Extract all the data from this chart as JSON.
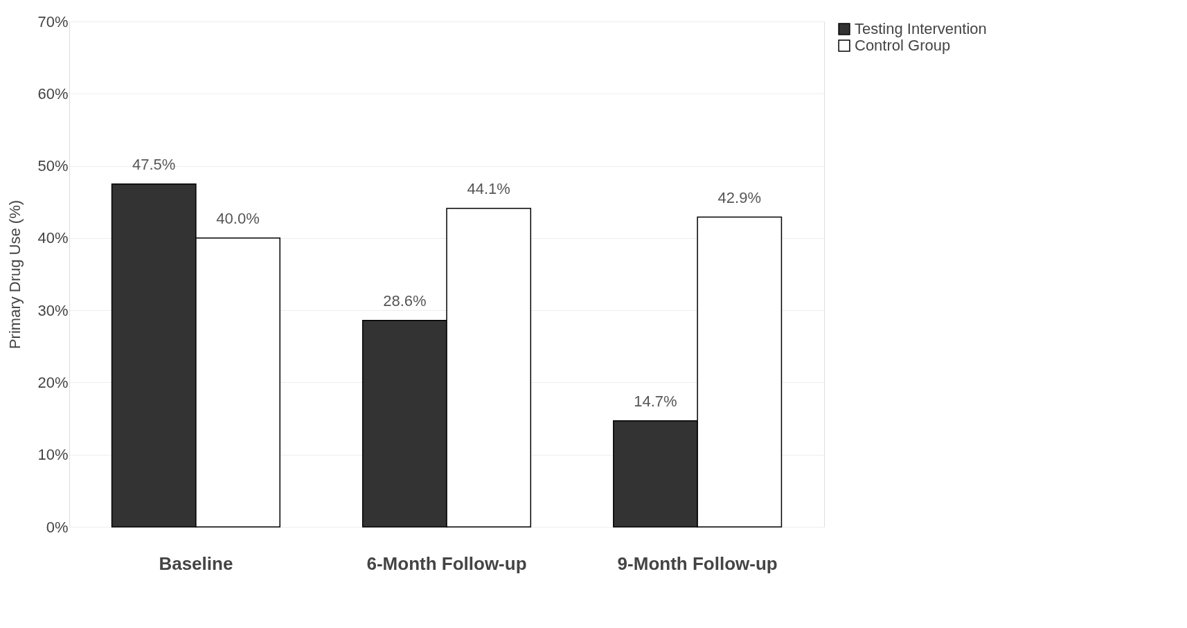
{
  "chart_data": {
    "type": "bar",
    "ylabel": "Primary Drug Use (%)",
    "categories": [
      "Baseline",
      "6-Month Follow-up",
      "9-Month Follow-up"
    ],
    "series": [
      {
        "name": "Testing Intervention",
        "color": "#333333",
        "values": [
          47.5,
          28.6,
          14.7
        ],
        "value_labels": [
          "47.5%",
          "28.6%",
          "14.7%"
        ]
      },
      {
        "name": "Control Group",
        "color": "#ffffff",
        "values": [
          40.0,
          44.1,
          42.9
        ],
        "value_labels": [
          "40.0%",
          "44.1%",
          "42.9%"
        ]
      }
    ],
    "ylim": [
      0,
      70
    ],
    "yticks": [
      {
        "value": 0,
        "label": "0%"
      },
      {
        "value": 10,
        "label": "10%"
      },
      {
        "value": 20,
        "label": "20%"
      },
      {
        "value": 30,
        "label": "30%"
      },
      {
        "value": 40,
        "label": "40%"
      },
      {
        "value": 50,
        "label": "50%"
      },
      {
        "value": 60,
        "label": "60%"
      },
      {
        "value": 70,
        "label": "70%"
      }
    ],
    "grid": "y",
    "legend": "right"
  }
}
